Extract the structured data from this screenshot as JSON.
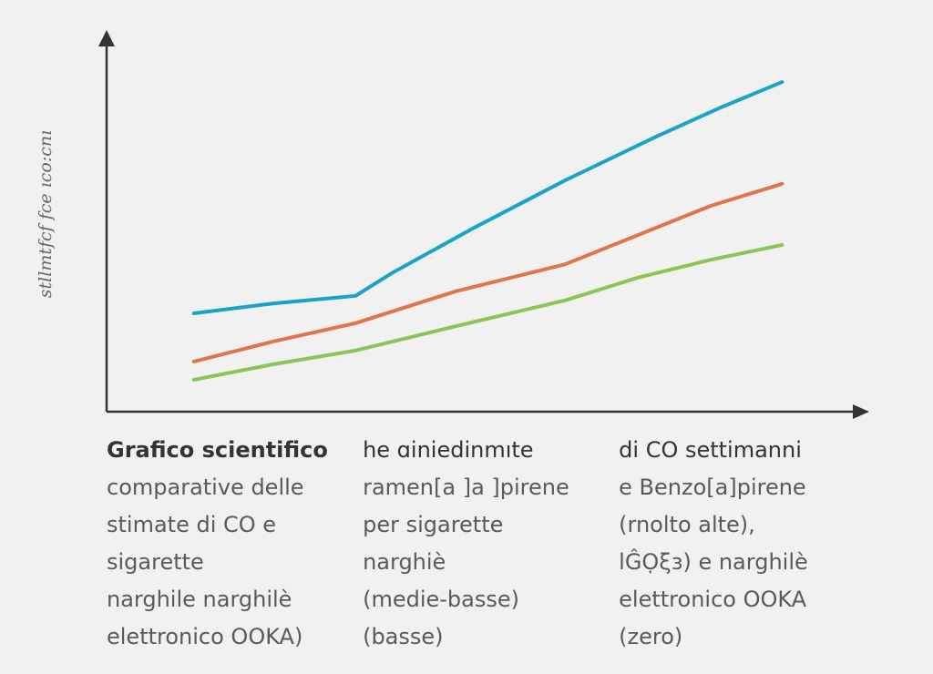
{
  "chart_data": {
    "type": "line",
    "title": "",
    "xlabel": "",
    "ylabel": "stllmtfcf fce ıco:cnı",
    "xlim": [
      0,
      10
    ],
    "ylim": [
      0,
      10
    ],
    "grid": false,
    "legend": "none",
    "series": [
      {
        "color": "#1aa3c8",
        "x": [
          1.15,
          2.2,
          3.28,
          3.76,
          4.84,
          6.04,
          7.24,
          8.08,
          8.9
        ],
        "y": [
          2.59,
          2.85,
          3.05,
          3.65,
          4.84,
          6.09,
          7.24,
          8.0,
          8.68
        ]
      },
      {
        "color": "#e0744a",
        "x": [
          1.15,
          2.2,
          3.28,
          4.6,
          6.04,
          7.0,
          7.96,
          8.9
        ],
        "y": [
          1.32,
          1.85,
          2.33,
          3.17,
          3.88,
          4.65,
          5.42,
          6.0
        ]
      },
      {
        "color": "#8cc456",
        "x": [
          1.15,
          2.2,
          3.28,
          4.6,
          6.04,
          7.0,
          7.96,
          8.9
        ],
        "y": [
          0.84,
          1.25,
          1.61,
          2.25,
          2.93,
          3.53,
          4.0,
          4.39
        ]
      }
    ]
  },
  "caption": {
    "rows": [
      [
        "Grafico scientifico",
        "he  ɑiniedinmıte",
        "di CO settimanni"
      ],
      [
        "comparative delle",
        "ramen[a ]a ]pirene",
        "e Benzo[a]pirene"
      ],
      [
        "stimate di CO e",
        "per sigarette",
        "(rnolto alte),"
      ],
      [
        "sigarette",
        "narghiè",
        "lĜỌξɜ) e narghilè"
      ],
      [
        "narghile narghilè",
        "(medie-basse)",
        "elettronico OOKA"
      ],
      [
        "elettronico OOKA)",
        "(basse)",
        "(zero)"
      ]
    ]
  }
}
